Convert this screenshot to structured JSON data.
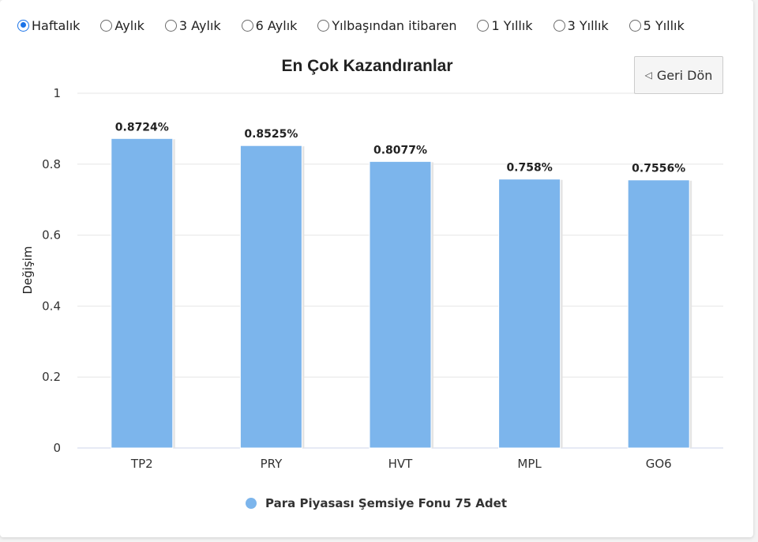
{
  "periods": [
    {
      "label": "Haftalık",
      "checked": true
    },
    {
      "label": "Aylık",
      "checked": false
    },
    {
      "label": "3 Aylık",
      "checked": false
    },
    {
      "label": "6 Aylık",
      "checked": false
    },
    {
      "label": "Yılbaşından itibaren",
      "checked": false
    },
    {
      "label": "1 Yıllık",
      "checked": false
    },
    {
      "label": "3 Yıllık",
      "checked": false
    },
    {
      "label": "5 Yıllık",
      "checked": false
    }
  ],
  "back_button": {
    "icon": "triangle-left-icon",
    "label": "Geri Dön"
  },
  "colors": {
    "bar": "#7cb5ec",
    "grid": "#e6e6e6",
    "axis": "#ccd6eb"
  },
  "chart_data": {
    "type": "bar",
    "title": "En Çok Kazandıranlar",
    "xlabel": "",
    "ylabel": "Değişim",
    "ylim": [
      0,
      1
    ],
    "yticks": [
      "0",
      "0.2",
      "0.4",
      "0.6",
      "0.8",
      "1"
    ],
    "ytick_values": [
      0,
      0.2,
      0.4,
      0.6,
      0.8,
      1
    ],
    "grid": true,
    "legend_placement": "bottom-center",
    "categories": [
      "TP2",
      "PRY",
      "HVT",
      "MPL",
      "GO6"
    ],
    "series": [
      {
        "name": "Para Piyasası Şemsiye Fonu 75 Adet",
        "values": [
          0.8724,
          0.8525,
          0.8077,
          0.758,
          0.7556
        ],
        "labels": [
          "0.8724%",
          "0.8525%",
          "0.8077%",
          "0.758%",
          "0.7556%"
        ]
      }
    ]
  }
}
